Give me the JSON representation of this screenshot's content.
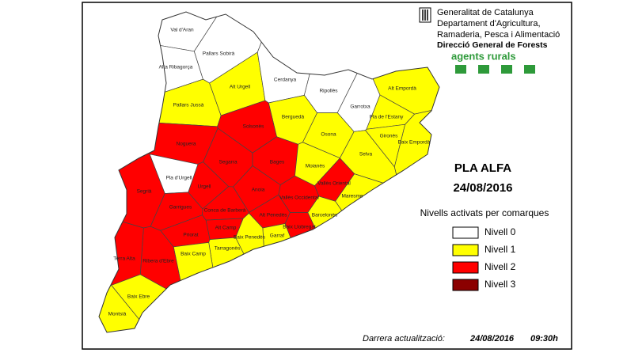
{
  "header": {
    "lines": [
      "Generalitat de Catalunya",
      "Departament d'Agricultura,",
      "Ramaderia, Pesca i Alimentació"
    ],
    "directorate": "Direcció General de Forests",
    "unit": "agents rurals"
  },
  "plan": {
    "title": "PLA ALFA",
    "date": "24/08/2016"
  },
  "legend": {
    "title": "Nivells activats per comarques",
    "items": [
      {
        "name": "Nivell 0",
        "color": "#ffffff"
      },
      {
        "name": "Nivell 1",
        "color": "#ffff00"
      },
      {
        "name": "Nivell 2",
        "color": "#ff0000"
      },
      {
        "name": "Nivell 3",
        "color": "#8b0000"
      }
    ]
  },
  "update": {
    "label": "Darrera actualització:",
    "date": "24/08/2016",
    "time": "09:30h"
  },
  "regions": [
    {
      "name": "Val d'Aran",
      "color": "#ffffff"
    },
    {
      "name": "Alta Ribagorça",
      "color": "#ffffff"
    },
    {
      "name": "Pallars Sobirà",
      "color": "#ffffff"
    },
    {
      "name": "Pallars Jussà",
      "color": "#ffff00"
    },
    {
      "name": "Alt Urgell",
      "color": "#ffff00"
    },
    {
      "name": "Cerdanya",
      "color": "#ffffff"
    },
    {
      "name": "Ripollès",
      "color": "#ffffff"
    },
    {
      "name": "Garrotxa",
      "color": "#ffffff"
    },
    {
      "name": "Alt Empordà",
      "color": "#ffff00"
    },
    {
      "name": "Pla de l'Estany",
      "color": "#ffff00"
    },
    {
      "name": "Gironès",
      "color": "#ffff00"
    },
    {
      "name": "Baix Empordà",
      "color": "#ffff00"
    },
    {
      "name": "Selva",
      "color": "#ffff00"
    },
    {
      "name": "Osona",
      "color": "#ffff00"
    },
    {
      "name": "Berguedà",
      "color": "#ffff00"
    },
    {
      "name": "Solsonès",
      "color": "#ff0000"
    },
    {
      "name": "Noguera",
      "color": "#ff0000"
    },
    {
      "name": "Segarra",
      "color": "#ff0000"
    },
    {
      "name": "Bages",
      "color": "#ff0000"
    },
    {
      "name": "Moianès",
      "color": "#ffff00"
    },
    {
      "name": "Vallès Oriental",
      "color": "#ff0000"
    },
    {
      "name": "Maresme",
      "color": "#ffff00"
    },
    {
      "name": "Vallès Occidental",
      "color": "#ff0000"
    },
    {
      "name": "Anoia",
      "color": "#ff0000"
    },
    {
      "name": "Urgell",
      "color": "#ff0000"
    },
    {
      "name": "Pla d'Urgell",
      "color": "#ffffff"
    },
    {
      "name": "Segrià",
      "color": "#ff0000"
    },
    {
      "name": "Garrigues",
      "color": "#ff0000"
    },
    {
      "name": "Conca de Barberà",
      "color": "#ff0000"
    },
    {
      "name": "Alt Penedès",
      "color": "#ff0000"
    },
    {
      "name": "Baix Llobregat",
      "color": "#ff0000"
    },
    {
      "name": "Barcelonès",
      "color": "#ffff00"
    },
    {
      "name": "Alt Camp",
      "color": "#ff0000"
    },
    {
      "name": "Garraf",
      "color": "#ffff00"
    },
    {
      "name": "Baix Penedès",
      "color": "#ffff00"
    },
    {
      "name": "Priorat",
      "color": "#ff0000"
    },
    {
      "name": "Tarragonès",
      "color": "#ffff00"
    },
    {
      "name": "Baix Camp",
      "color": "#ffff00"
    },
    {
      "name": "Ribera d'Ebre",
      "color": "#ff0000"
    },
    {
      "name": "Terra Alta",
      "color": "#ff0000"
    },
    {
      "name": "Baix Ebre",
      "color": "#ffff00"
    },
    {
      "name": "Montsià",
      "color": "#ffff00"
    }
  ]
}
